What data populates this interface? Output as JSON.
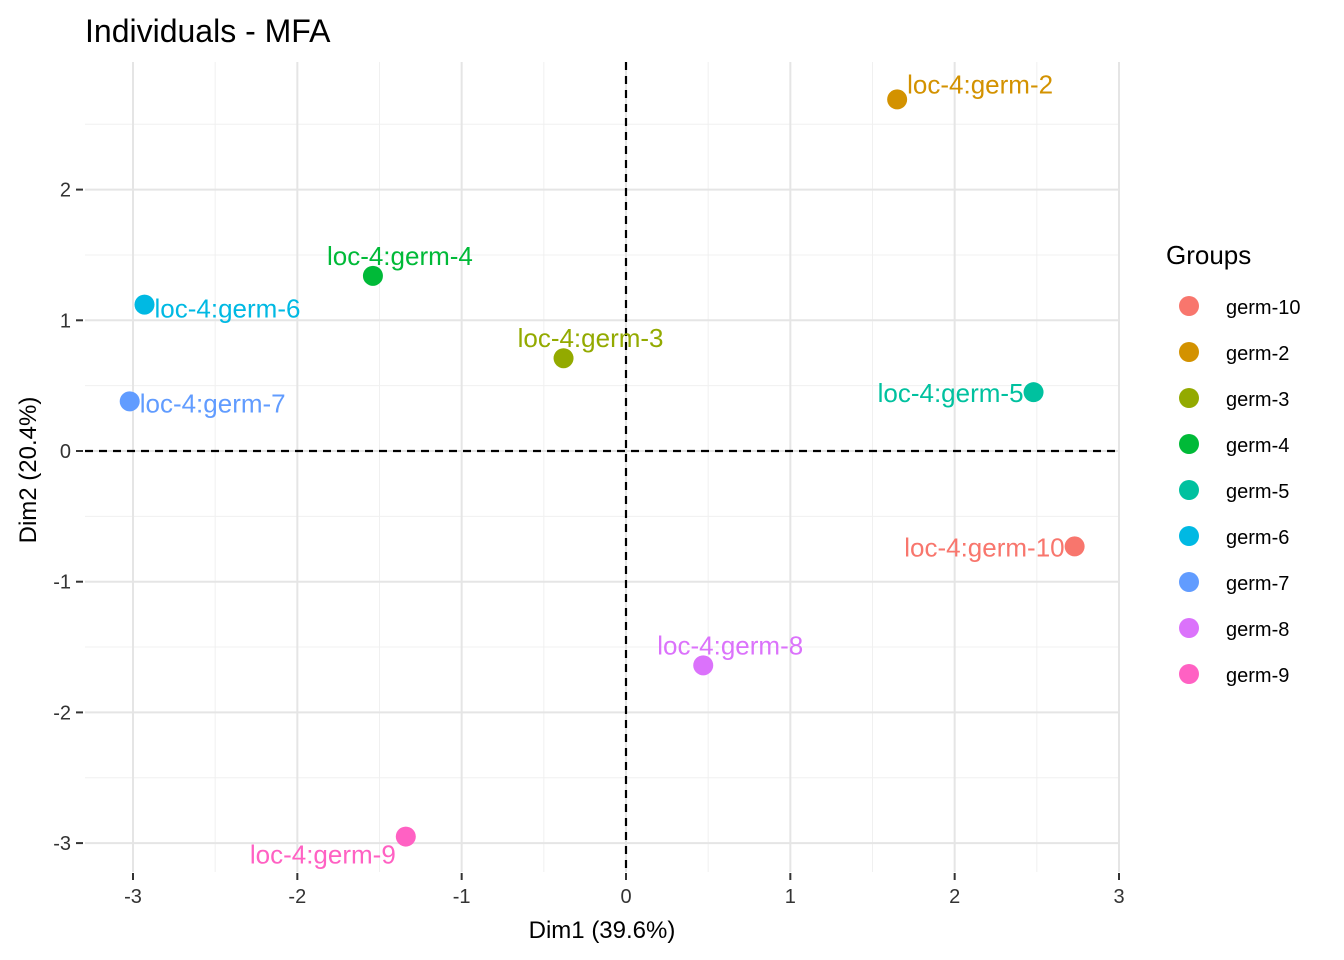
{
  "chart_data": {
    "type": "scatter",
    "title": "Individuals - MFA",
    "xlabel": "Dim1 (39.6%)",
    "ylabel": "Dim2 (20.4%)",
    "xlim": [
      -3.0,
      3.0
    ],
    "ylim": [
      -3.0,
      2.7
    ],
    "x_ticks": [
      -3,
      -2,
      -1,
      0,
      1,
      2,
      3
    ],
    "y_ticks": [
      -3,
      -2,
      -1,
      0,
      1,
      2
    ],
    "x_tick_labels": [
      "-3",
      "-2",
      "-1",
      "0",
      "1",
      "2",
      "3"
    ],
    "y_tick_labels": [
      "-3",
      "-2",
      "-1",
      "0",
      "1",
      "2"
    ],
    "grid": true,
    "reference_lines": {
      "x": 0,
      "y": 0,
      "style": "dashed"
    },
    "legend": {
      "title": "Groups",
      "placement": "right",
      "entries": [
        {
          "name": "germ-10",
          "color": "#F8766D"
        },
        {
          "name": "germ-2",
          "color": "#D39200"
        },
        {
          "name": "germ-3",
          "color": "#93AA00"
        },
        {
          "name": "germ-4",
          "color": "#00BA38"
        },
        {
          "name": "germ-5",
          "color": "#00C19F"
        },
        {
          "name": "germ-6",
          "color": "#00B9E3"
        },
        {
          "name": "germ-7",
          "color": "#619CFF"
        },
        {
          "name": "germ-8",
          "color": "#DB72FB"
        },
        {
          "name": "germ-9",
          "color": "#FF61C3"
        }
      ]
    },
    "points": [
      {
        "label": "loc-4:germ-2",
        "group": "germ-2",
        "x": 1.65,
        "y": 2.69,
        "color": "#D39200",
        "label_side": "right"
      },
      {
        "label": "loc-4:germ-4",
        "group": "germ-4",
        "x": -1.54,
        "y": 1.34,
        "color": "#00BA38",
        "label_side": "above"
      },
      {
        "label": "loc-4:germ-6",
        "group": "germ-6",
        "x": -2.93,
        "y": 1.12,
        "color": "#00B9E3",
        "label_side": "right"
      },
      {
        "label": "loc-4:germ-3",
        "group": "germ-3",
        "x": -0.38,
        "y": 0.71,
        "color": "#93AA00",
        "label_side": "above"
      },
      {
        "label": "loc-4:germ-5",
        "group": "germ-5",
        "x": 2.48,
        "y": 0.45,
        "color": "#00C19F",
        "label_side": "left"
      },
      {
        "label": "loc-4:germ-7",
        "group": "germ-7",
        "x": -3.02,
        "y": 0.38,
        "color": "#619CFF",
        "label_side": "right"
      },
      {
        "label": "loc-4:germ-10",
        "group": "germ-10",
        "x": 2.73,
        "y": -0.73,
        "color": "#F8766D",
        "label_side": "left"
      },
      {
        "label": "loc-4:germ-8",
        "group": "germ-8",
        "x": 0.47,
        "y": -1.64,
        "color": "#DB72FB",
        "label_side": "above"
      },
      {
        "label": "loc-4:germ-9",
        "group": "germ-9",
        "x": -1.34,
        "y": -2.95,
        "color": "#FF61C3",
        "label_side": "below-left"
      }
    ]
  }
}
